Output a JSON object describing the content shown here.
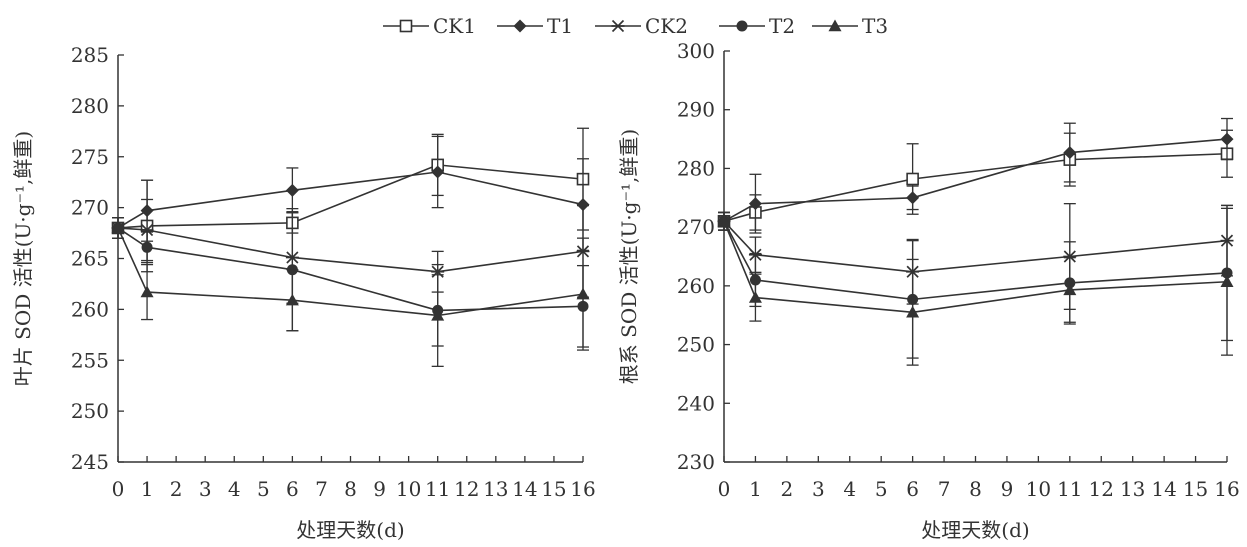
{
  "legend": {
    "items": [
      {
        "label": "CK1",
        "marker": "open-square"
      },
      {
        "label": "T1",
        "marker": "diamond"
      },
      {
        "label": "CK2",
        "marker": "asterisk"
      },
      {
        "label": "T2",
        "marker": "circle"
      },
      {
        "label": "T3",
        "marker": "triangle"
      }
    ]
  },
  "colors": {
    "ink": "#333333",
    "background": "#ffffff"
  },
  "chart_data": [
    {
      "type": "line",
      "ylabel": "叶片 SOD 活性(U·g⁻¹,鲜重)",
      "xlabel": "处理天数(d)",
      "ylim": [
        245,
        285
      ],
      "yticks": [
        245,
        250,
        255,
        260,
        265,
        270,
        275,
        280,
        285
      ],
      "xlim": [
        0,
        16
      ],
      "xticks": [
        0,
        1,
        2,
        3,
        4,
        5,
        6,
        7,
        8,
        9,
        10,
        11,
        12,
        13,
        14,
        15,
        16
      ],
      "x": [
        0,
        1,
        6,
        11,
        16
      ],
      "series": [
        {
          "name": "CK1",
          "marker": "open-square",
          "values": [
            268.0,
            268.2,
            268.5,
            274.2,
            272.8
          ],
          "errors": [
            1.0,
            4.5,
            1.0,
            3.0,
            5.0
          ]
        },
        {
          "name": "T1",
          "marker": "diamond",
          "values": [
            268.0,
            269.7,
            271.7,
            273.5,
            270.3
          ],
          "errors": [
            1.0,
            3.0,
            2.2,
            3.5,
            4.5
          ]
        },
        {
          "name": "CK2",
          "marker": "asterisk",
          "values": [
            268.0,
            267.8,
            265.1,
            263.7,
            265.7
          ],
          "errors": [
            1.0,
            3.0,
            4.5,
            2.0,
            4.5
          ]
        },
        {
          "name": "T2",
          "marker": "circle",
          "values": [
            268.0,
            266.1,
            263.9,
            259.9,
            260.3
          ],
          "errors": [
            1.0,
            1.5,
            6.0,
            3.5,
            4.0
          ]
        },
        {
          "name": "T3",
          "marker": "triangle",
          "values": [
            268.0,
            261.7,
            260.9,
            259.4,
            261.5
          ],
          "errors": [
            1.0,
            2.7,
            3.0,
            5.0,
            5.5
          ]
        }
      ]
    },
    {
      "type": "line",
      "ylabel": "根系 SOD 活性(U·g⁻¹,鲜重)",
      "xlabel": "处理天数(d)",
      "ylim": [
        230,
        300
      ],
      "yticks": [
        230,
        240,
        250,
        260,
        270,
        280,
        290,
        300
      ],
      "xlim": [
        0,
        16
      ],
      "xticks": [
        0,
        1,
        2,
        3,
        4,
        5,
        6,
        7,
        8,
        9,
        10,
        11,
        12,
        13,
        14,
        15,
        16
      ],
      "x": [
        0,
        1,
        6,
        11,
        16
      ],
      "series": [
        {
          "name": "CK1",
          "marker": "open-square",
          "values": [
            271.0,
            272.5,
            278.2,
            281.5,
            282.5
          ],
          "errors": [
            1.5,
            3.0,
            6.0,
            4.5,
            4.0
          ]
        },
        {
          "name": "T1",
          "marker": "diamond",
          "values": [
            271.0,
            274.0,
            275.0,
            282.7,
            285.0
          ],
          "errors": [
            1.5,
            5.0,
            2.0,
            5.0,
            3.5
          ]
        },
        {
          "name": "CK2",
          "marker": "asterisk",
          "values": [
            271.0,
            265.3,
            262.4,
            265.0,
            267.7
          ],
          "errors": [
            1.5,
            3.0,
            5.5,
            9.0,
            6.0
          ]
        },
        {
          "name": "T2",
          "marker": "circle",
          "values": [
            271.0,
            261.0,
            257.7,
            260.5,
            262.2
          ],
          "errors": [
            1.5,
            4.5,
            10.0,
            7.0,
            11.5
          ]
        },
        {
          "name": "T3",
          "marker": "triangle",
          "values": [
            271.0,
            258.0,
            255.5,
            259.3,
            260.7
          ],
          "errors": [
            1.5,
            4.0,
            9.0,
            5.5,
            12.5
          ]
        }
      ]
    }
  ]
}
